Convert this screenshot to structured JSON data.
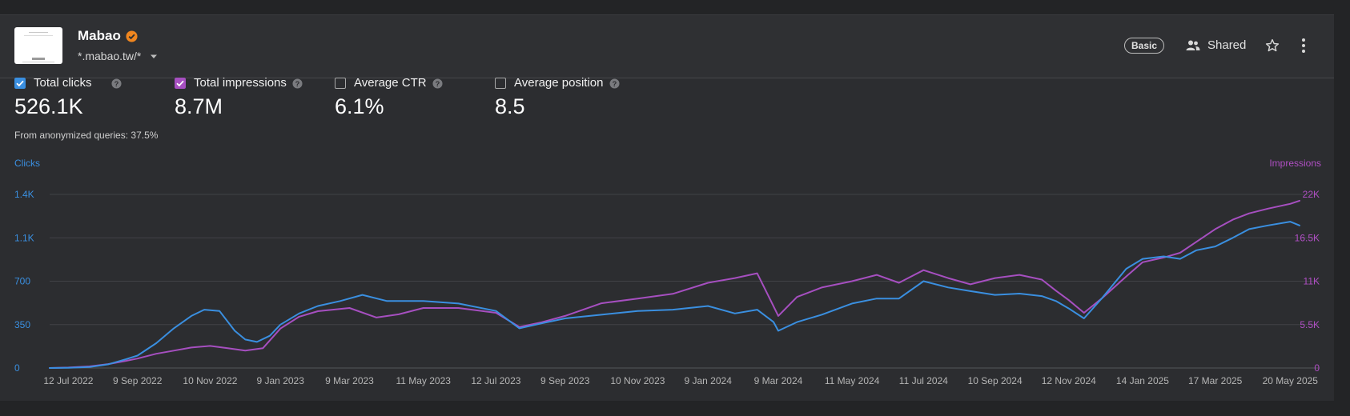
{
  "site": {
    "name": "Mabao",
    "url_pattern": "*.mabao.tw/*",
    "plan_badge": "Basic",
    "shared_label": "Shared",
    "verified_icon": "verified-badge-icon",
    "colors": {
      "verified": "#f0861f"
    }
  },
  "metrics": [
    {
      "label": "Total clicks",
      "value": "526.1K",
      "checked": true,
      "color": "#3a8fe0"
    },
    {
      "label": "Total impressions",
      "value": "8.7M",
      "checked": true,
      "color": "#a64fc0"
    },
    {
      "label": "Average CTR",
      "value": "6.1%",
      "checked": false
    },
    {
      "label": "Average position",
      "value": "8.5",
      "checked": false
    }
  ],
  "anonymized_note": "From anonymized queries: 37.5%",
  "chart_data": {
    "type": "line",
    "y_left_label": "Clicks",
    "y_right_label": "Impressions",
    "y_left_ticks": [
      "0",
      "350",
      "700",
      "1.1K",
      "1.4K"
    ],
    "y_right_ticks": [
      "0",
      "5.5K",
      "11K",
      "16.5K",
      "22K"
    ],
    "y_left_range": [
      0,
      1400
    ],
    "y_right_range": [
      0,
      22000
    ],
    "x_range": [
      "2022-06-26",
      "2025-05-28"
    ],
    "x_ticks": [
      {
        "label": "12 Jul 2022",
        "date": "2022-07-12"
      },
      {
        "label": "9 Sep 2022",
        "date": "2022-09-09"
      },
      {
        "label": "10 Nov 2022",
        "date": "2022-11-10"
      },
      {
        "label": "9 Jan 2023",
        "date": "2023-01-09"
      },
      {
        "label": "9 Mar 2023",
        "date": "2023-03-09"
      },
      {
        "label": "11 May 2023",
        "date": "2023-05-11"
      },
      {
        "label": "12 Jul 2023",
        "date": "2023-07-12"
      },
      {
        "label": "9 Sep 2023",
        "date": "2023-09-09"
      },
      {
        "label": "10 Nov 2023",
        "date": "2023-11-10"
      },
      {
        "label": "9 Jan 2024",
        "date": "2024-01-09"
      },
      {
        "label": "9 Mar 2024",
        "date": "2024-03-09"
      },
      {
        "label": "11 May 2024",
        "date": "2024-05-11"
      },
      {
        "label": "11 Jul 2024",
        "date": "2024-07-11"
      },
      {
        "label": "10 Sep 2024",
        "date": "2024-09-10"
      },
      {
        "label": "12 Nov 2024",
        "date": "2024-11-12"
      },
      {
        "label": "14 Jan 2025",
        "date": "2025-01-14"
      },
      {
        "label": "17 Mar 2025",
        "date": "2025-03-17"
      },
      {
        "label": "20 May 2025",
        "date": "2025-05-20"
      }
    ],
    "grid": true,
    "series": [
      {
        "name": "Clicks",
        "axis": "left",
        "color": "#3a8fe0",
        "points": [
          [
            "2022-06-26",
            0
          ],
          [
            "2022-07-12",
            2
          ],
          [
            "2022-07-30",
            8
          ],
          [
            "2022-08-15",
            30
          ],
          [
            "2022-08-30",
            70
          ],
          [
            "2022-09-09",
            100
          ],
          [
            "2022-09-25",
            200
          ],
          [
            "2022-10-10",
            320
          ],
          [
            "2022-10-25",
            420
          ],
          [
            "2022-11-05",
            470
          ],
          [
            "2022-11-18",
            460
          ],
          [
            "2022-12-01",
            300
          ],
          [
            "2022-12-10",
            230
          ],
          [
            "2022-12-20",
            210
          ],
          [
            "2022-12-31",
            260
          ],
          [
            "2023-01-09",
            350
          ],
          [
            "2023-01-25",
            440
          ],
          [
            "2023-02-10",
            500
          ],
          [
            "2023-03-01",
            540
          ],
          [
            "2023-03-20",
            590
          ],
          [
            "2023-04-10",
            540
          ],
          [
            "2023-05-11",
            540
          ],
          [
            "2023-06-10",
            520
          ],
          [
            "2023-07-12",
            460
          ],
          [
            "2023-08-01",
            320
          ],
          [
            "2023-08-20",
            360
          ],
          [
            "2023-09-09",
            400
          ],
          [
            "2023-10-10",
            430
          ],
          [
            "2023-11-10",
            460
          ],
          [
            "2023-12-10",
            470
          ],
          [
            "2024-01-09",
            500
          ],
          [
            "2024-02-01",
            440
          ],
          [
            "2024-02-20",
            470
          ],
          [
            "2024-03-05",
            370
          ],
          [
            "2024-03-09",
            300
          ],
          [
            "2024-03-25",
            370
          ],
          [
            "2024-04-15",
            430
          ],
          [
            "2024-05-11",
            520
          ],
          [
            "2024-06-01",
            560
          ],
          [
            "2024-06-20",
            560
          ],
          [
            "2024-07-11",
            700
          ],
          [
            "2024-08-01",
            650
          ],
          [
            "2024-08-20",
            620
          ],
          [
            "2024-09-10",
            590
          ],
          [
            "2024-10-01",
            600
          ],
          [
            "2024-10-20",
            580
          ],
          [
            "2024-11-01",
            540
          ],
          [
            "2024-11-12",
            480
          ],
          [
            "2024-11-25",
            400
          ],
          [
            "2024-12-10",
            560
          ],
          [
            "2024-12-31",
            800
          ],
          [
            "2025-01-14",
            880
          ],
          [
            "2025-02-01",
            900
          ],
          [
            "2025-02-15",
            880
          ],
          [
            "2025-03-01",
            950
          ],
          [
            "2025-03-17",
            980
          ],
          [
            "2025-04-01",
            1050
          ],
          [
            "2025-04-15",
            1120
          ],
          [
            "2025-05-01",
            1150
          ],
          [
            "2025-05-20",
            1180
          ],
          [
            "2025-05-28",
            1150
          ]
        ]
      },
      {
        "name": "Impressions",
        "axis": "right",
        "color": "#a64fc0",
        "points": [
          [
            "2022-06-26",
            0
          ],
          [
            "2022-07-12",
            60
          ],
          [
            "2022-07-30",
            200
          ],
          [
            "2022-08-15",
            500
          ],
          [
            "2022-08-30",
            900
          ],
          [
            "2022-09-09",
            1200
          ],
          [
            "2022-09-25",
            1800
          ],
          [
            "2022-10-10",
            2200
          ],
          [
            "2022-10-25",
            2600
          ],
          [
            "2022-11-10",
            2800
          ],
          [
            "2022-11-25",
            2500
          ],
          [
            "2022-12-10",
            2200
          ],
          [
            "2022-12-25",
            2500
          ],
          [
            "2023-01-09",
            5000
          ],
          [
            "2023-01-25",
            6500
          ],
          [
            "2023-02-10",
            7200
          ],
          [
            "2023-03-09",
            7600
          ],
          [
            "2023-04-01",
            6400
          ],
          [
            "2023-04-20",
            6800
          ],
          [
            "2023-05-11",
            7600
          ],
          [
            "2023-06-10",
            7600
          ],
          [
            "2023-07-12",
            7000
          ],
          [
            "2023-08-01",
            5200
          ],
          [
            "2023-08-20",
            5800
          ],
          [
            "2023-09-09",
            6600
          ],
          [
            "2023-10-10",
            8200
          ],
          [
            "2023-11-10",
            8800
          ],
          [
            "2023-12-10",
            9400
          ],
          [
            "2024-01-09",
            10800
          ],
          [
            "2024-02-01",
            11400
          ],
          [
            "2024-02-20",
            12000
          ],
          [
            "2024-03-01",
            9000
          ],
          [
            "2024-03-09",
            6600
          ],
          [
            "2024-03-25",
            9000
          ],
          [
            "2024-04-15",
            10200
          ],
          [
            "2024-05-11",
            11000
          ],
          [
            "2024-06-01",
            11800
          ],
          [
            "2024-06-20",
            10800
          ],
          [
            "2024-07-11",
            12400
          ],
          [
            "2024-08-01",
            11400
          ],
          [
            "2024-08-20",
            10600
          ],
          [
            "2024-09-10",
            11400
          ],
          [
            "2024-10-01",
            11800
          ],
          [
            "2024-10-20",
            11200
          ],
          [
            "2024-11-01",
            9800
          ],
          [
            "2024-11-12",
            8600
          ],
          [
            "2024-11-25",
            7000
          ],
          [
            "2024-12-10",
            8800
          ],
          [
            "2024-12-31",
            11600
          ],
          [
            "2025-01-14",
            13400
          ],
          [
            "2025-02-01",
            14000
          ],
          [
            "2025-02-15",
            14600
          ],
          [
            "2025-03-01",
            16000
          ],
          [
            "2025-03-17",
            17600
          ],
          [
            "2025-04-01",
            18800
          ],
          [
            "2025-04-15",
            19600
          ],
          [
            "2025-05-01",
            20200
          ],
          [
            "2025-05-20",
            20800
          ],
          [
            "2025-05-28",
            21200
          ]
        ]
      }
    ]
  }
}
